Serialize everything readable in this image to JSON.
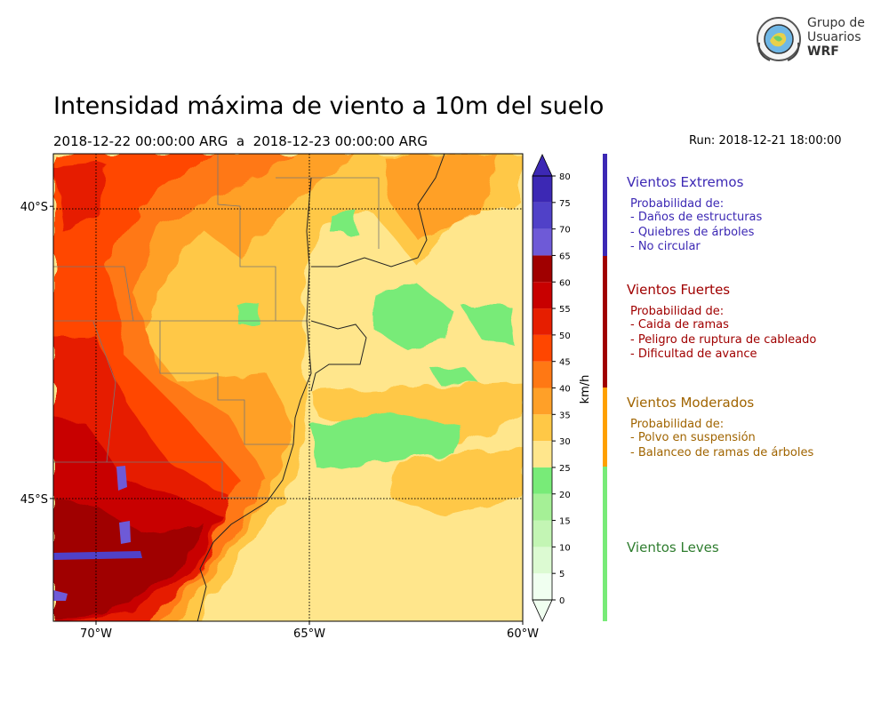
{
  "header": {
    "title": "Intensidad máxima de viento a 10m del suelo",
    "subtitle": "2018-12-22 00:00:00 ARG  a  2018-12-23 00:00:00 ARG",
    "run": "Run: 2018-12-21 18:00:00"
  },
  "logo": {
    "line1": "Grupo de",
    "line2": "Usuarios",
    "line3": "WRF"
  },
  "chart_data": {
    "type": "heatmap",
    "title": "Intensidad máxima de viento a 10m del suelo",
    "variable": "wind speed max 10m",
    "x_axis": {
      "ticks": [
        -70,
        -65,
        -60
      ],
      "tick_labels": [
        "70°W",
        "65°W",
        "60°W"
      ],
      "range": [
        -71,
        -60
      ]
    },
    "y_axis": {
      "ticks": [
        -40,
        -45
      ],
      "tick_labels": [
        "40°S",
        "45°S"
      ],
      "range": [
        -47.1,
        -39.1
      ]
    },
    "colorbar": {
      "label": "km/h",
      "levels": [
        0,
        5,
        10,
        15,
        20,
        25,
        30,
        35,
        40,
        45,
        50,
        55,
        60,
        65,
        70,
        75,
        80
      ],
      "colors": [
        "#f0fff0",
        "#dcfad2",
        "#c3f5b4",
        "#a5f096",
        "#78eb78",
        "#ffe68c",
        "#ffc846",
        "#ffa028",
        "#ff7814",
        "#ff4600",
        "#e61e00",
        "#c80000",
        "#a00000",
        "#6e5ad7",
        "#5041c8",
        "#3c28b4"
      ],
      "extend": "both"
    }
  },
  "legend": [
    {
      "title": "Vientos Extremos",
      "color": "#3c28b4",
      "text_color": "#3c28b4",
      "range": [
        65,
        80
      ],
      "heading": "Probabilidad de:",
      "items": [
        "- Daños de estructuras",
        "- Quiebres de árboles",
        "- No circular"
      ]
    },
    {
      "title": "Vientos Fuertes",
      "color": "#a00000",
      "text_color": "#a00000",
      "range": [
        40,
        65
      ],
      "heading": "Probabilidad de:",
      "items": [
        "- Caida de ramas",
        "- Peligro de ruptura de cableado",
        "- Dificultad de avance"
      ]
    },
    {
      "title": "Vientos Moderados",
      "color": "#ffa000",
      "text_color": "#a06400",
      "range": [
        25,
        40
      ],
      "heading": "Probabilidad de:",
      "items": [
        "- Polvo en suspensión",
        "- Balanceo de ramas de árboles"
      ]
    },
    {
      "title": "Vientos Leves",
      "color": "#78eb78",
      "text_color": "#2f7d2f",
      "range": [
        0,
        25
      ],
      "heading": "",
      "items": []
    }
  ]
}
